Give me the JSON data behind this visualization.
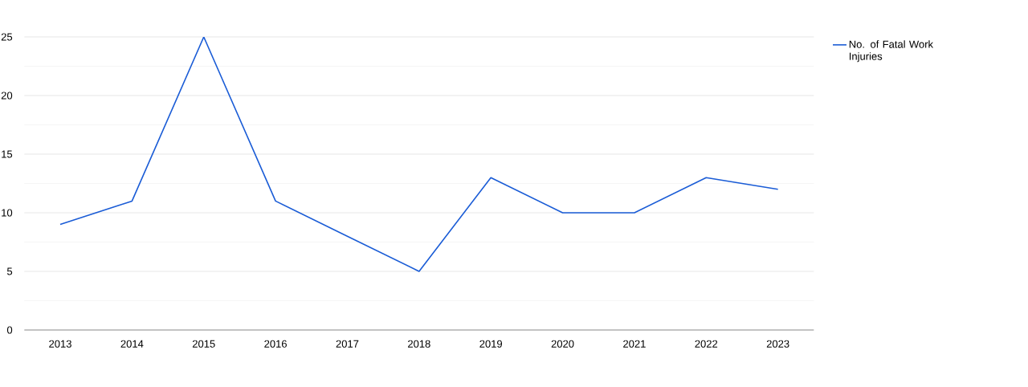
{
  "chart_data": {
    "type": "line",
    "categories": [
      "2013",
      "2014",
      "2015",
      "2016",
      "2017",
      "2018",
      "2019",
      "2020",
      "2021",
      "2022",
      "2023"
    ],
    "series": [
      {
        "name": "No. of Fatal Work Injuries",
        "color": "#1a5cd6",
        "values": [
          9,
          11,
          25,
          11,
          8,
          5,
          13,
          10,
          10,
          13,
          12
        ]
      }
    ],
    "ylim": [
      0,
      25
    ],
    "yticks": [
      0,
      5,
      10,
      15,
      20,
      25
    ],
    "grid": "y",
    "legend": "top right",
    "marker": "none",
    "line_style": "solid"
  }
}
